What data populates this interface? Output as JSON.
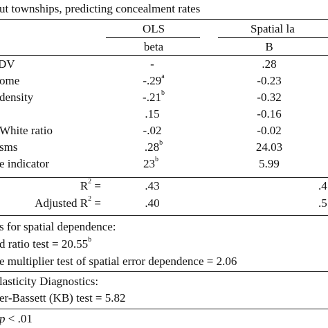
{
  "title": "ut townships, predicting concealment rates",
  "columns": {
    "ols": "OLS",
    "spatial": "Spatial la",
    "ols_sub": "beta",
    "spatial_sub": "B"
  },
  "rows": [
    {
      "label": "DV",
      "ols": "-",
      "ols_sup": "",
      "spatial": ".28"
    },
    {
      "label": "ome",
      "ols": "-.29",
      "ols_sup": "a",
      "spatial": "-0.23"
    },
    {
      "label": " density",
      "ols": "-.21",
      "ols_sup": "b",
      "spatial": "-0.32"
    },
    {
      "label": "",
      "ols": ".15",
      "ols_sup": "",
      "spatial": "-0.16"
    },
    {
      "label": "White ratio",
      "ols": "-.02",
      "ols_sup": "",
      "spatial": "-0.02"
    },
    {
      "label": "sms",
      "ols": ".28",
      "ols_sup": "b",
      "spatial": "24.03"
    },
    {
      "label": "e indicator",
      "ols": "23",
      "ols_sup": "b",
      "spatial": "5.99"
    }
  ],
  "fit": [
    {
      "label": "R",
      "sup": "2",
      "suffix": " =",
      "ols": ".43",
      "spatial": ".4"
    },
    {
      "label": "Adjusted R",
      "sup": "2",
      "suffix": " =",
      "ols": ".40",
      "spatial": ".5"
    }
  ],
  "notes": {
    "spatial_tests_header": "s for spatial dependence:",
    "likelihood_test": "d ratio test = 20.55",
    "likelihood_test_sup": "b",
    "lagrange_test": "e multiplier test of spatial error dependence = 2.06",
    "hetero_header": "lasticity Diagnostics:",
    "kb_test": "er-Bassett (KB) test = 5.82",
    "pvalue_italic": "p",
    "pvalue_rest": " < .01"
  }
}
